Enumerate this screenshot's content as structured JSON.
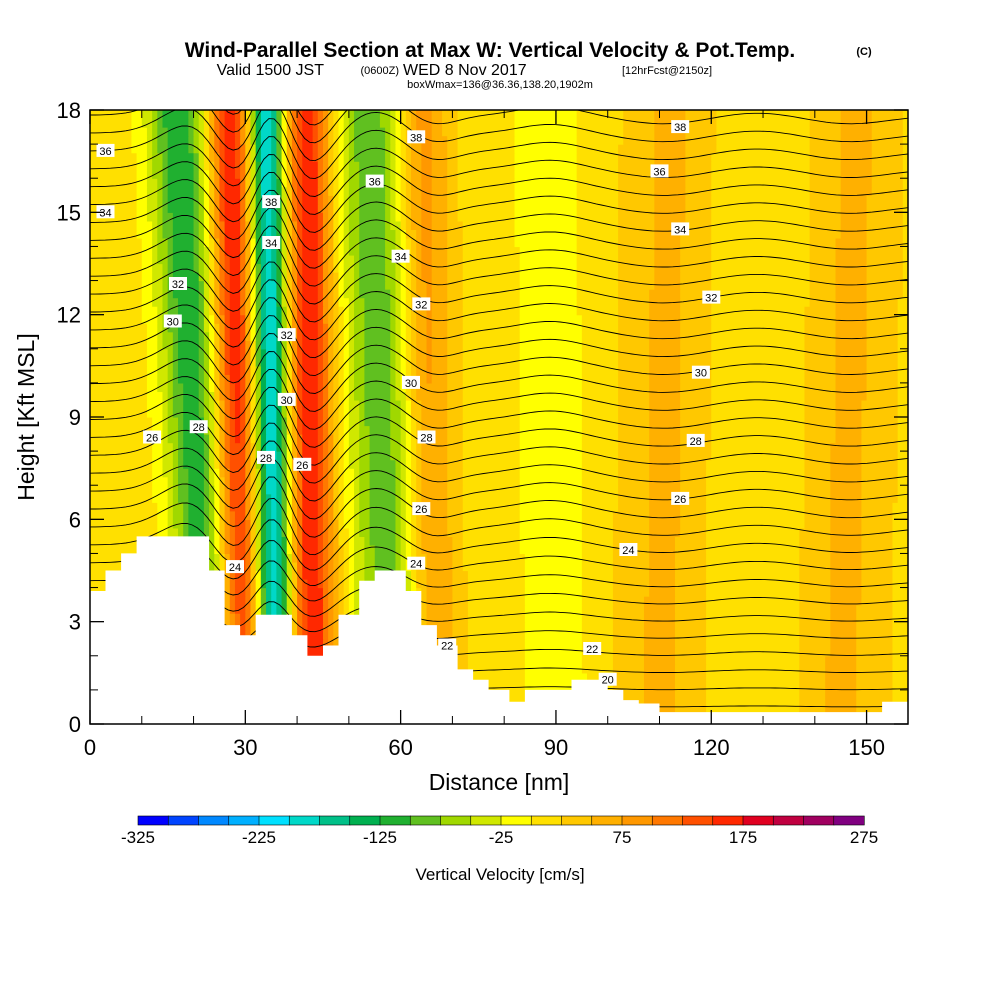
{
  "title": {
    "main": "Wind-Parallel Section at Max W: Vertical Velocity & Pot.Temp.",
    "copyright": "(C)",
    "valid_a": "Valid 1500 JST",
    "valid_utc": "(0600Z)",
    "valid_b": "WED 8 Nov 2017",
    "forecast": "[12hrFcst@2150z]",
    "box": "boxWmax=136@36.36,138.20,1902m"
  },
  "chart_data": {
    "type": "heatmap",
    "xlabel": "Distance [nm]",
    "ylabel": "Height [Kft MSL]",
    "xlim": [
      0,
      158
    ],
    "ylim": [
      0,
      18
    ],
    "x_ticks": [
      0,
      30,
      60,
      90,
      120,
      150
    ],
    "x_tick_labels": [
      "0",
      "30",
      "60",
      "90",
      "120",
      "150"
    ],
    "y_ticks": [
      0,
      3,
      6,
      9,
      12,
      15,
      18
    ],
    "y_tick_labels": [
      "0",
      "3",
      "6",
      "9",
      "12",
      "15",
      "18"
    ],
    "colorbar": {
      "label": "Vertical Velocity [cm/s]",
      "min": -325,
      "max": 275,
      "step": 25,
      "tick_values": [
        -325,
        -225,
        -125,
        -25,
        75,
        175,
        275
      ],
      "tick_labels": [
        "-325",
        "-225",
        "-125",
        "-25",
        "75",
        "175",
        "275"
      ],
      "colors": [
        "#0000ff",
        "#0044ff",
        "#0088ff",
        "#00b0ff",
        "#00e0ff",
        "#00d8c8",
        "#00c088",
        "#00b050",
        "#20b030",
        "#60c020",
        "#a0d800",
        "#d0e800",
        "#ffff00",
        "#ffe000",
        "#ffc800",
        "#ffb000",
        "#ff9800",
        "#ff7800",
        "#ff5000",
        "#ff2800",
        "#e00020",
        "#c00040",
        "#a00060",
        "#800080"
      ]
    },
    "terrain": [
      [
        0,
        3.9
      ],
      [
        3,
        3.9
      ],
      [
        3,
        4.5
      ],
      [
        6,
        4.5
      ],
      [
        6,
        5.0
      ],
      [
        9,
        5.0
      ],
      [
        9,
        5.5
      ],
      [
        23,
        5.5
      ],
      [
        23,
        4.5
      ],
      [
        26,
        4.5
      ],
      [
        26,
        2.9
      ],
      [
        29,
        2.9
      ],
      [
        29,
        2.6
      ],
      [
        32,
        2.6
      ],
      [
        32,
        3.2
      ],
      [
        39,
        3.2
      ],
      [
        39,
        2.6
      ],
      [
        42,
        2.6
      ],
      [
        42,
        2.0
      ],
      [
        45,
        2.0
      ],
      [
        45,
        2.3
      ],
      [
        48,
        2.3
      ],
      [
        48,
        3.2
      ],
      [
        52,
        3.2
      ],
      [
        52,
        4.2
      ],
      [
        55,
        4.2
      ],
      [
        55,
        4.5
      ],
      [
        61,
        4.5
      ],
      [
        61,
        3.9
      ],
      [
        64,
        3.9
      ],
      [
        64,
        2.9
      ],
      [
        67,
        2.9
      ],
      [
        67,
        2.3
      ],
      [
        71,
        2.3
      ],
      [
        71,
        1.6
      ],
      [
        74,
        1.6
      ],
      [
        74,
        1.3
      ],
      [
        77,
        1.3
      ],
      [
        77,
        1.0
      ],
      [
        81,
        1.0
      ],
      [
        81,
        0.65
      ],
      [
        84,
        0.65
      ],
      [
        84,
        1.0
      ],
      [
        93,
        1.0
      ],
      [
        93,
        1.3
      ],
      [
        100,
        1.3
      ],
      [
        100,
        1.0
      ],
      [
        103,
        1.0
      ],
      [
        103,
        0.7
      ],
      [
        106,
        0.7
      ],
      [
        106,
        0.6
      ],
      [
        110,
        0.6
      ],
      [
        110,
        0.35
      ],
      [
        116,
        0.35
      ],
      [
        116,
        0.35
      ],
      [
        150,
        0.35
      ],
      [
        150,
        0.35
      ],
      [
        153,
        0.35
      ],
      [
        153,
        0.65
      ],
      [
        158,
        0.65
      ]
    ],
    "velocity_features": [
      {
        "x_bottom": 24,
        "x_top": 17,
        "halfwidth": 6,
        "w": -140
      },
      {
        "x_bottom": 29,
        "x_top": 27,
        "halfwidth": 4.5,
        "w": 170
      },
      {
        "x_bottom": 36,
        "x_top": 34,
        "halfwidth": 3.5,
        "w": -230
      },
      {
        "x_bottom": 43,
        "x_top": 42,
        "halfwidth": 4.5,
        "w": 160
      },
      {
        "x_bottom": 59,
        "x_top": 54,
        "halfwidth": 7,
        "w": -110
      },
      {
        "x_bottom": 66,
        "x_top": 64,
        "halfwidth": 5,
        "w": 80
      },
      {
        "x_bottom": 90,
        "x_top": 88,
        "halfwidth": 6,
        "w": -40
      },
      {
        "x_bottom": 110,
        "x_top": 112,
        "halfwidth": 8,
        "w": 40
      },
      {
        "x_bottom": 128,
        "x_top": 130,
        "halfwidth": 7,
        "w": -15
      },
      {
        "x_bottom": 145,
        "x_top": 148,
        "halfwidth": 8,
        "w": 40
      }
    ],
    "background_w": 15,
    "theta_contour_labels": [
      {
        "value": "36",
        "x": 3,
        "y": 16.8
      },
      {
        "value": "34",
        "x": 3,
        "y": 15.0
      },
      {
        "value": "32",
        "x": 17,
        "y": 12.9
      },
      {
        "value": "30",
        "x": 16,
        "y": 11.8
      },
      {
        "value": "28",
        "x": 21,
        "y": 8.7
      },
      {
        "value": "26",
        "x": 12,
        "y": 8.4
      },
      {
        "value": "38",
        "x": 35,
        "y": 15.3
      },
      {
        "value": "34",
        "x": 35,
        "y": 14.1
      },
      {
        "value": "32",
        "x": 38,
        "y": 11.4
      },
      {
        "value": "30",
        "x": 38,
        "y": 9.5
      },
      {
        "value": "28",
        "x": 34,
        "y": 7.8
      },
      {
        "value": "26",
        "x": 41,
        "y": 7.6
      },
      {
        "value": "24",
        "x": 28,
        "y": 4.6
      },
      {
        "value": "38",
        "x": 63,
        "y": 17.2
      },
      {
        "value": "36",
        "x": 55,
        "y": 15.9
      },
      {
        "value": "34",
        "x": 60,
        "y": 13.7
      },
      {
        "value": "32",
        "x": 64,
        "y": 12.3
      },
      {
        "value": "30",
        "x": 62,
        "y": 10.0
      },
      {
        "value": "28",
        "x": 65,
        "y": 8.4
      },
      {
        "value": "26",
        "x": 64,
        "y": 6.3
      },
      {
        "value": "24",
        "x": 63,
        "y": 4.7
      },
      {
        "value": "22",
        "x": 69,
        "y": 2.3
      },
      {
        "value": "38",
        "x": 114,
        "y": 17.5
      },
      {
        "value": "36",
        "x": 110,
        "y": 16.2
      },
      {
        "value": "34",
        "x": 114,
        "y": 14.5
      },
      {
        "value": "32",
        "x": 120,
        "y": 12.5
      },
      {
        "value": "30",
        "x": 118,
        "y": 10.3
      },
      {
        "value": "28",
        "x": 117,
        "y": 8.3
      },
      {
        "value": "26",
        "x": 114,
        "y": 6.6
      },
      {
        "value": "24",
        "x": 104,
        "y": 5.1
      },
      {
        "value": "22",
        "x": 97,
        "y": 2.2
      },
      {
        "value": "20",
        "x": 100,
        "y": 1.3
      }
    ]
  }
}
